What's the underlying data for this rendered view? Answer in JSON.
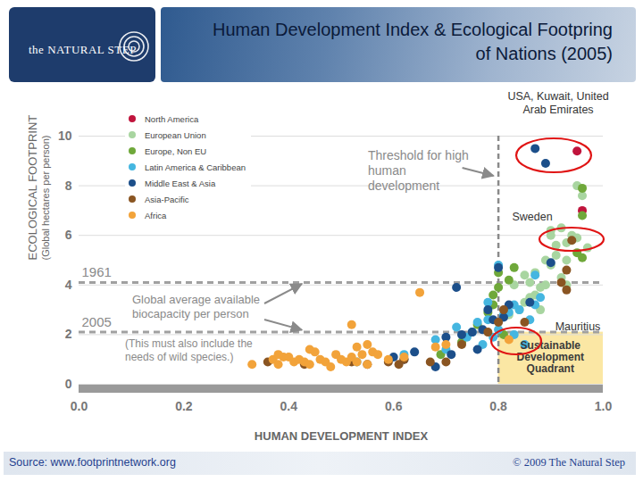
{
  "header": {
    "logo": "the NATURAL STEP",
    "title": "Human Development Index & Ecological Footpring of Nations (2005)"
  },
  "chart_data": {
    "type": "scatter",
    "xlabel": "HUMAN DEVELOPMENT INDEX",
    "ylabel": "ECOLOGICAL FOOTPRINT",
    "ylabel_sub": "(Global hectares per person)",
    "xlim": [
      0,
      1
    ],
    "xticks": [
      {
        "value": 0,
        "label": "0.0"
      },
      0.2,
      0.4,
      0.6,
      0.8,
      {
        "value": 1,
        "label": "1.0"
      }
    ],
    "ylim": [
      0,
      10
    ],
    "yticks": [
      0,
      2,
      4,
      6,
      8,
      10
    ],
    "grid": true,
    "legend": "top-left",
    "series": [
      {
        "name": "North America",
        "color": "#c0143c",
        "x": [
          0.95,
          0.96
        ],
        "y": [
          9.4,
          7.0
        ]
      },
      {
        "name": "European Union",
        "color": "#a8d5a0",
        "x": [
          0.86,
          0.87,
          0.88,
          0.89,
          0.9,
          0.91,
          0.92,
          0.93,
          0.93,
          0.95,
          0.94,
          0.92,
          0.9,
          0.84,
          0.85,
          0.86,
          0.83,
          0.87,
          0.82,
          0.95,
          0.96,
          0.91,
          0.89,
          0.9,
          0.94,
          0.93,
          0.97,
          0.85,
          0.88
        ],
        "y": [
          4.1,
          3.6,
          3.9,
          5.0,
          4.8,
          5.6,
          4.3,
          4.0,
          5.0,
          5.9,
          5.8,
          6.3,
          6.0,
          3.0,
          3.3,
          3.5,
          4.0,
          4.5,
          2.8,
          8.0,
          7.6,
          5.2,
          4.0,
          6.2,
          6.0,
          5.7,
          5.5,
          4.4,
          3.0
        ]
      },
      {
        "name": "Europe, Non EU",
        "color": "#6fa83a",
        "x": [
          0.69,
          0.73,
          0.76,
          0.78,
          0.79,
          0.8,
          0.8,
          0.81,
          0.82,
          0.83,
          0.96,
          0.96,
          0.96,
          0.95,
          0.79
        ],
        "y": [
          1.2,
          1.7,
          2.4,
          2.9,
          3.6,
          3.9,
          4.5,
          2.0,
          4.2,
          4.7,
          5.1,
          7.9,
          6.8,
          5.3,
          3.2
        ]
      },
      {
        "name": "Latin America & Caribbean",
        "color": "#45b6e0",
        "x": [
          0.53,
          0.62,
          0.68,
          0.7,
          0.72,
          0.74,
          0.75,
          0.76,
          0.77,
          0.78,
          0.79,
          0.8,
          0.81,
          0.82,
          0.83,
          0.84,
          0.86,
          0.87,
          0.88,
          0.78,
          0.8,
          0.87,
          0.83,
          0.85
        ],
        "y": [
          0.9,
          1.2,
          1.8,
          1.4,
          2.3,
          1.9,
          2.1,
          2.5,
          1.6,
          2.6,
          1.9,
          2.2,
          2.8,
          2.9,
          3.2,
          3.0,
          2.6,
          3.2,
          3.5,
          3.3,
          4.8,
          4.4,
          2.0,
          1.6
        ]
      },
      {
        "name": "Middle East & Asia",
        "color": "#1c4f8a",
        "x": [
          0.87,
          0.89,
          0.68,
          0.7,
          0.73,
          0.72,
          0.75,
          0.77,
          0.78,
          0.79,
          0.8,
          0.81,
          0.82,
          0.62,
          0.64,
          0.71,
          0.76,
          0.86,
          0.9,
          0.6
        ],
        "y": [
          9.5,
          8.9,
          0.7,
          1.9,
          2.0,
          3.9,
          2.1,
          2.2,
          3.0,
          2.6,
          4.7,
          2.7,
          3.2,
          1.0,
          1.3,
          1.2,
          1.4,
          3.3,
          4.9,
          1.1
        ]
      },
      {
        "name": "Asia-Pacific",
        "color": "#8a5522",
        "x": [
          0.36,
          0.43,
          0.52,
          0.59,
          0.61,
          0.62,
          0.67,
          0.7,
          0.73,
          0.78,
          0.8,
          0.81,
          0.85,
          0.92,
          0.93,
          0.94,
          0.93,
          0.55
        ],
        "y": [
          0.9,
          0.8,
          0.9,
          0.9,
          0.8,
          1.0,
          0.9,
          0.9,
          1.6,
          2.1,
          2.5,
          3.0,
          2.5,
          4.1,
          3.8,
          5.8,
          4.6,
          0.8
        ]
      },
      {
        "name": "Africa",
        "color": "#f2a33a",
        "x": [
          0.33,
          0.37,
          0.38,
          0.39,
          0.4,
          0.41,
          0.42,
          0.43,
          0.44,
          0.45,
          0.46,
          0.47,
          0.48,
          0.49,
          0.5,
          0.51,
          0.52,
          0.53,
          0.53,
          0.54,
          0.55,
          0.55,
          0.56,
          0.57,
          0.59,
          0.62,
          0.65,
          0.68,
          0.7,
          0.44,
          0.52,
          0.82,
          0.38
        ],
        "y": [
          0.8,
          1.0,
          0.8,
          1.1,
          1.1,
          0.9,
          1.0,
          0.9,
          0.8,
          1.3,
          1.0,
          0.9,
          0.7,
          1.2,
          1.0,
          0.9,
          1.1,
          1.5,
          0.9,
          1.2,
          1.6,
          0.8,
          1.3,
          1.2,
          1.0,
          1.1,
          3.7,
          1.5,
          1.6,
          1.4,
          2.4,
          1.8,
          1.2
        ]
      }
    ],
    "threshold": {
      "x": 0.8,
      "label": "Threshold for high human development"
    },
    "biocapacity": {
      "label": "Global average available biocapacity per person",
      "note": "(This must also include the needs of wild species.)",
      "lines": [
        {
          "label": "1961",
          "value": 4.1
        },
        {
          "label": "2005",
          "value": 2.1
        }
      ]
    },
    "quadrant": {
      "label": "Sustainable Development Quadrant"
    },
    "callouts": [
      "USA, Kuwait, United Arab Emirates",
      "Sweden",
      "Mauritius"
    ]
  },
  "footer": {
    "source": "Source: www.footprintnetwork.org",
    "copyright": "© 2009 The Natural Step"
  }
}
